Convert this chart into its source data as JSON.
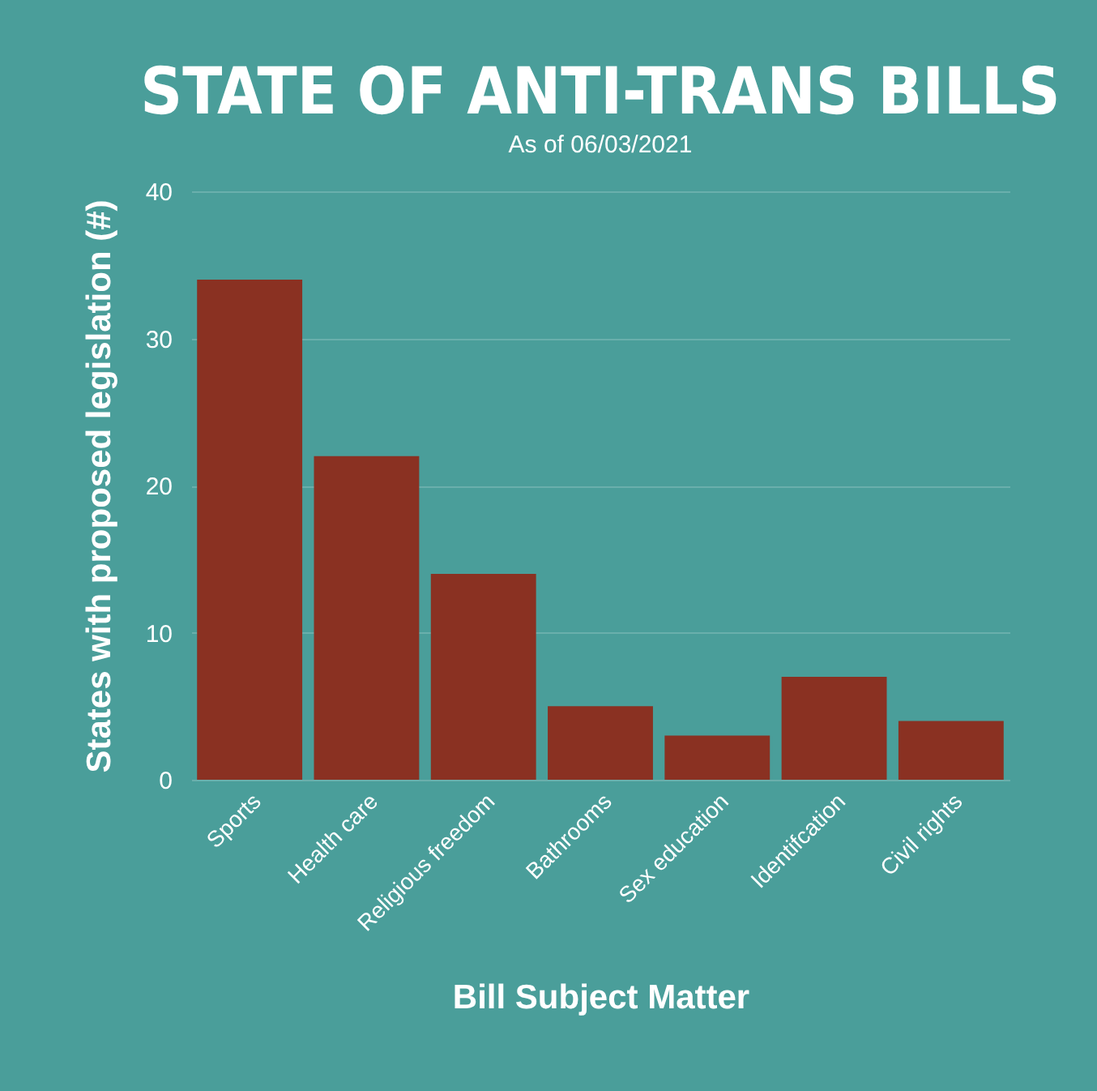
{
  "chart_data": {
    "type": "bar",
    "title": "STATE OF ANTI-TRANS BILLS",
    "subtitle": "As of 06/03/2021",
    "xlabel": "Bill Subject Matter",
    "ylabel": "States with proposed legislation (#)",
    "categories": [
      "Sports",
      "Health care",
      "Religious freedom",
      "Bathrooms",
      "Sex education",
      "Identifcation",
      "Civil rights"
    ],
    "values": [
      34,
      22,
      14,
      5,
      3,
      7,
      4
    ],
    "color": "#8a3122",
    "ylim": [
      0,
      40
    ],
    "yticks": [
      0,
      10,
      20,
      30,
      40
    ],
    "grid": "y"
  }
}
